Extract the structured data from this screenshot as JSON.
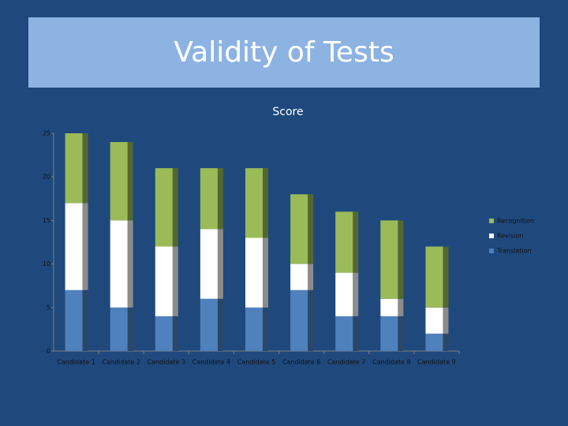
{
  "slide_title": "Validity of Tests",
  "chart_data": {
    "type": "stacked_bar",
    "title": "Score",
    "categories": [
      "Candidate 1",
      "Candidate 2",
      "Candidate 3",
      "Candidate 4",
      "Candidate 5",
      "Candidate 6",
      "Candidate 7",
      "Candidate 8",
      "Candidate 9"
    ],
    "series": [
      {
        "name": "Translation",
        "color": "#4f81bd",
        "values": [
          7,
          5,
          4,
          6,
          5,
          7,
          4,
          4,
          2
        ]
      },
      {
        "name": "Revision",
        "color": "#ffffff",
        "values": [
          10,
          10,
          8,
          8,
          8,
          3,
          5,
          2,
          3
        ]
      },
      {
        "name": "Recognition",
        "color": "#9bbb59",
        "values": [
          8,
          9,
          9,
          7,
          8,
          8,
          7,
          9,
          7
        ]
      }
    ],
    "ylim": [
      0,
      25
    ],
    "yticks": [
      0,
      5,
      10,
      15,
      20,
      25
    ],
    "grid": false,
    "legend": "right"
  }
}
